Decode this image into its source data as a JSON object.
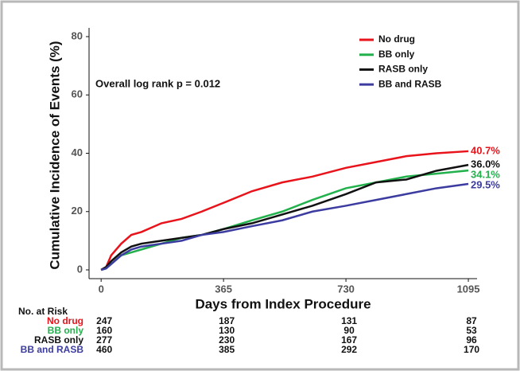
{
  "chart_data": {
    "type": "line",
    "y_label": "Cumulative Incidence of Events (%)",
    "x_label": "Days from Index Procedure",
    "annotation": "Overall log rank p = 0.012",
    "legend_position": "top-right",
    "xlim": [
      -36,
      1121
    ],
    "xticks": [
      0,
      365,
      730,
      1095
    ],
    "ylim": [
      -3,
      83
    ],
    "yticks": [
      0,
      20,
      40,
      60,
      80
    ],
    "x": [
      0,
      15,
      30,
      60,
      90,
      120,
      180,
      240,
      300,
      365,
      450,
      540,
      630,
      730,
      820,
      910,
      1000,
      1095
    ],
    "series": [
      {
        "name": "No drug",
        "color": "#e8131b",
        "values": [
          0,
          1,
          5,
          9,
          12,
          13,
          16,
          17.5,
          20,
          23,
          27,
          30,
          32,
          35,
          37,
          39,
          40,
          40.7
        ],
        "value_labels": [
          null,
          null,
          null,
          null,
          null,
          null,
          null,
          null,
          null,
          null,
          null,
          null,
          null,
          null,
          null,
          null,
          null,
          "40.7%"
        ],
        "at_risk": [
          247,
          187,
          131,
          87
        ]
      },
      {
        "name": "BB only",
        "color": "#22b14c",
        "values": [
          0,
          0.5,
          2,
          5,
          6,
          7,
          9,
          11,
          12,
          14,
          17,
          20,
          24,
          28,
          30,
          32,
          33,
          34.1
        ],
        "value_labels": [
          null,
          null,
          null,
          null,
          null,
          null,
          null,
          null,
          null,
          null,
          null,
          null,
          null,
          null,
          null,
          null,
          null,
          "34.1%"
        ],
        "at_risk": [
          160,
          130,
          90,
          53
        ]
      },
      {
        "name": "RASB only",
        "color": "#111111",
        "values": [
          0,
          1,
          3,
          6,
          8,
          9,
          10,
          11,
          12,
          14,
          16,
          19,
          22,
          26,
          30,
          31,
          34,
          36
        ],
        "value_labels": [
          null,
          null,
          null,
          null,
          null,
          null,
          null,
          null,
          null,
          null,
          null,
          null,
          null,
          null,
          null,
          null,
          null,
          "36.0%"
        ],
        "at_risk": [
          277,
          230,
          167,
          96
        ]
      },
      {
        "name": "BB and RASB",
        "color": "#3c3ca0",
        "values": [
          0,
          0.5,
          2,
          5,
          7,
          8,
          9,
          10,
          12,
          13,
          15,
          17,
          20,
          22,
          24,
          26,
          28,
          29.5
        ],
        "value_labels": [
          null,
          null,
          null,
          null,
          null,
          null,
          null,
          null,
          null,
          null,
          null,
          null,
          null,
          null,
          null,
          null,
          null,
          "29.5%"
        ],
        "at_risk": [
          460,
          385,
          292,
          170
        ]
      }
    ],
    "risk_title": "No. at Risk"
  }
}
